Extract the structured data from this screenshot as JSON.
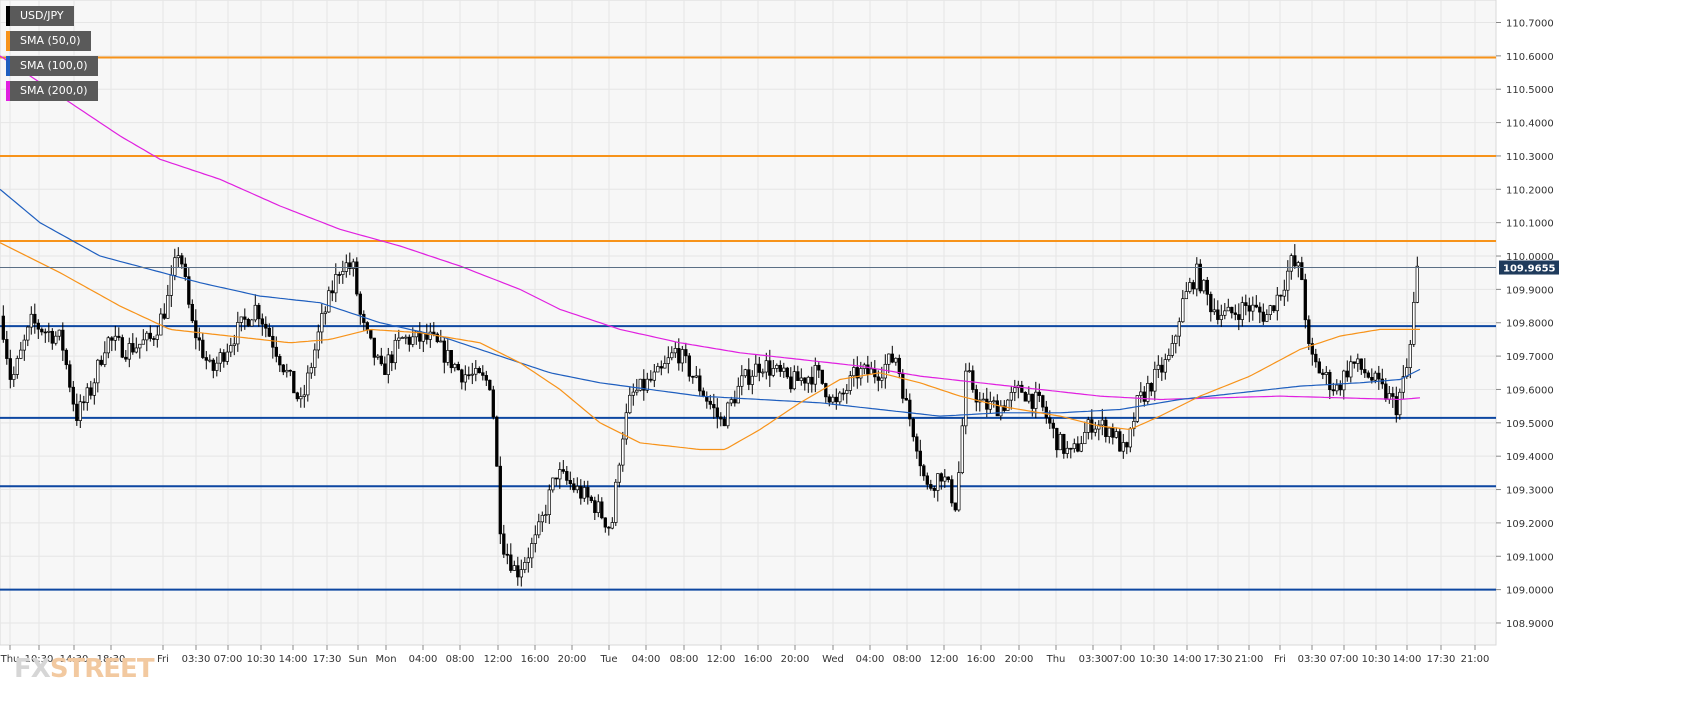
{
  "chart_data": {
    "type": "candlestick",
    "symbol": "USD/JPY",
    "timeframe": "15m",
    "last_price": "109.9655",
    "ylim": [
      108.85,
      110.75
    ],
    "y_ticks": [
      "110.7000",
      "110.6000",
      "110.5000",
      "110.4000",
      "110.3000",
      "110.2000",
      "110.1000",
      "110.0000",
      "109.9000",
      "109.8000",
      "109.7000",
      "109.6000",
      "109.5000",
      "109.4000",
      "109.3000",
      "109.2000",
      "109.1000",
      "109.0000",
      "108.9000"
    ],
    "x_ticks": [
      "Thu",
      "10:30",
      "14:30",
      "18:30",
      "Fri",
      "03:30",
      "07:00",
      "10:30",
      "14:00",
      "17:30",
      "Sun",
      "Mon",
      "04:00",
      "08:00",
      "12:00",
      "16:00",
      "20:00",
      "Tue",
      "04:00",
      "08:00",
      "12:00",
      "16:00",
      "20:00",
      "Wed",
      "04:00",
      "08:00",
      "12:00",
      "16:00",
      "20:00",
      "Thu",
      "03:30",
      "07:00",
      "10:30",
      "14:00",
      "17:30",
      "21:00",
      "Fri",
      "03:30",
      "07:00",
      "10:30",
      "14:00",
      "17:30",
      "21:00"
    ],
    "grid": true,
    "legend_position": "top-left",
    "legend": [
      {
        "label": "USD/JPY",
        "color": "#000000"
      },
      {
        "label": "SMA (50,0)",
        "color": "#f7931a"
      },
      {
        "label": "SMA (100,0)",
        "color": "#1f5fbf"
      },
      {
        "label": "SMA (200,0)",
        "color": "#e020e0"
      }
    ],
    "horizontal_levels": [
      {
        "value": 110.595,
        "color": "#f7931a"
      },
      {
        "value": 110.3,
        "color": "#f7931a"
      },
      {
        "value": 110.045,
        "color": "#f7931a"
      },
      {
        "value": 109.79,
        "color": "#0d47a1"
      },
      {
        "value": 109.515,
        "color": "#0d47a1"
      },
      {
        "value": 109.31,
        "color": "#0d47a1"
      },
      {
        "value": 109.0,
        "color": "#0d47a1"
      }
    ],
    "close_anchors": [
      [
        0,
        109.82
      ],
      [
        10,
        109.62
      ],
      [
        30,
        109.8
      ],
      [
        60,
        109.75
      ],
      [
        75,
        109.52
      ],
      [
        90,
        109.6
      ],
      [
        105,
        109.75
      ],
      [
        125,
        109.72
      ],
      [
        150,
        109.75
      ],
      [
        165,
        109.85
      ],
      [
        178,
        110.03
      ],
      [
        190,
        109.8
      ],
      [
        210,
        109.65
      ],
      [
        230,
        109.75
      ],
      [
        255,
        109.85
      ],
      [
        275,
        109.72
      ],
      [
        300,
        109.55
      ],
      [
        320,
        109.8
      ],
      [
        340,
        109.98
      ],
      [
        352,
        109.96
      ],
      [
        360,
        109.8
      ],
      [
        380,
        109.65
      ],
      [
        400,
        109.75
      ],
      [
        430,
        109.75
      ],
      [
        460,
        109.65
      ],
      [
        490,
        109.62
      ],
      [
        500,
        109.15
      ],
      [
        515,
        109.05
      ],
      [
        535,
        109.15
      ],
      [
        555,
        109.35
      ],
      [
        575,
        109.3
      ],
      [
        595,
        109.25
      ],
      [
        610,
        109.18
      ],
      [
        620,
        109.45
      ],
      [
        630,
        109.58
      ],
      [
        660,
        109.65
      ],
      [
        675,
        109.72
      ],
      [
        700,
        109.6
      ],
      [
        720,
        109.5
      ],
      [
        740,
        109.62
      ],
      [
        760,
        109.68
      ],
      [
        790,
        109.62
      ],
      [
        815,
        109.65
      ],
      [
        835,
        109.55
      ],
      [
        855,
        109.65
      ],
      [
        875,
        109.65
      ],
      [
        895,
        109.7
      ],
      [
        905,
        109.55
      ],
      [
        915,
        109.45
      ],
      [
        925,
        109.3
      ],
      [
        940,
        109.35
      ],
      [
        955,
        109.25
      ],
      [
        965,
        109.65
      ],
      [
        980,
        109.55
      ],
      [
        1000,
        109.55
      ],
      [
        1020,
        109.6
      ],
      [
        1040,
        109.55
      ],
      [
        1055,
        109.45
      ],
      [
        1070,
        109.4
      ],
      [
        1090,
        109.5
      ],
      [
        1110,
        109.48
      ],
      [
        1125,
        109.4
      ],
      [
        1135,
        109.55
      ],
      [
        1150,
        109.62
      ],
      [
        1170,
        109.7
      ],
      [
        1180,
        109.85
      ],
      [
        1195,
        109.95
      ],
      [
        1210,
        109.85
      ],
      [
        1225,
        109.82
      ],
      [
        1245,
        109.85
      ],
      [
        1265,
        109.82
      ],
      [
        1280,
        109.9
      ],
      [
        1290,
        109.98
      ],
      [
        1300,
        109.95
      ],
      [
        1308,
        109.7
      ],
      [
        1320,
        109.65
      ],
      [
        1335,
        109.6
      ],
      [
        1350,
        109.68
      ],
      [
        1365,
        109.65
      ],
      [
        1380,
        109.6
      ],
      [
        1395,
        109.55
      ],
      [
        1405,
        109.65
      ],
      [
        1410,
        109.75
      ],
      [
        1415,
        109.95
      ],
      [
        1420,
        109.97
      ]
    ],
    "sma50_anchors": [
      [
        0,
        110.04
      ],
      [
        60,
        109.95
      ],
      [
        120,
        109.85
      ],
      [
        170,
        109.78
      ],
      [
        230,
        109.76
      ],
      [
        290,
        109.74
      ],
      [
        330,
        109.75
      ],
      [
        370,
        109.78
      ],
      [
        420,
        109.77
      ],
      [
        480,
        109.74
      ],
      [
        520,
        109.68
      ],
      [
        560,
        109.6
      ],
      [
        600,
        109.5
      ],
      [
        640,
        109.44
      ],
      [
        700,
        109.42
      ],
      [
        725,
        109.42
      ],
      [
        760,
        109.48
      ],
      [
        800,
        109.56
      ],
      [
        840,
        109.63
      ],
      [
        880,
        109.65
      ],
      [
        920,
        109.62
      ],
      [
        960,
        109.58
      ],
      [
        1000,
        109.55
      ],
      [
        1060,
        109.52
      ],
      [
        1100,
        109.49
      ],
      [
        1130,
        109.48
      ],
      [
        1160,
        109.52
      ],
      [
        1200,
        109.58
      ],
      [
        1250,
        109.64
      ],
      [
        1300,
        109.72
      ],
      [
        1340,
        109.76
      ],
      [
        1380,
        109.78
      ],
      [
        1420,
        109.78
      ]
    ],
    "sma100_anchors": [
      [
        0,
        110.2
      ],
      [
        40,
        110.1
      ],
      [
        100,
        110.0
      ],
      [
        150,
        109.96
      ],
      [
        200,
        109.92
      ],
      [
        260,
        109.88
      ],
      [
        320,
        109.86
      ],
      [
        380,
        109.8
      ],
      [
        440,
        109.76
      ],
      [
        500,
        109.7
      ],
      [
        550,
        109.65
      ],
      [
        600,
        109.62
      ],
      [
        650,
        109.6
      ],
      [
        700,
        109.58
      ],
      [
        760,
        109.57
      ],
      [
        820,
        109.56
      ],
      [
        880,
        109.54
      ],
      [
        940,
        109.52
      ],
      [
        1000,
        109.53
      ],
      [
        1060,
        109.53
      ],
      [
        1120,
        109.54
      ],
      [
        1180,
        109.57
      ],
      [
        1240,
        109.59
      ],
      [
        1300,
        109.61
      ],
      [
        1360,
        109.62
      ],
      [
        1400,
        109.63
      ],
      [
        1420,
        109.66
      ]
    ],
    "sma200_anchors": [
      [
        0,
        110.6
      ],
      [
        60,
        110.48
      ],
      [
        120,
        110.36
      ],
      [
        160,
        110.29
      ],
      [
        220,
        110.23
      ],
      [
        280,
        110.15
      ],
      [
        340,
        110.08
      ],
      [
        400,
        110.03
      ],
      [
        460,
        109.97
      ],
      [
        520,
        109.9
      ],
      [
        560,
        109.84
      ],
      [
        620,
        109.78
      ],
      [
        680,
        109.74
      ],
      [
        740,
        109.71
      ],
      [
        800,
        109.69
      ],
      [
        860,
        109.67
      ],
      [
        920,
        109.64
      ],
      [
        980,
        109.62
      ],
      [
        1040,
        109.6
      ],
      [
        1100,
        109.58
      ],
      [
        1160,
        109.57
      ],
      [
        1220,
        109.575
      ],
      [
        1280,
        109.58
      ],
      [
        1340,
        109.575
      ],
      [
        1400,
        109.57
      ],
      [
        1420,
        109.575
      ]
    ]
  }
}
